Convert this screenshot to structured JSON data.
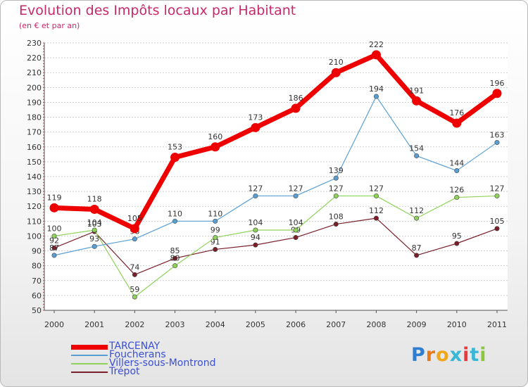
{
  "title": "Evolution des Impôts locaux par Habitant",
  "subtitle": "(en € et par an)",
  "logo": {
    "text": "Proxiti",
    "letter_colors": [
      "#2f7fd0",
      "#e87a1a",
      "#f0a81a",
      "#3bb6d6",
      "#e83a3a",
      "#3bb6d6",
      "#8cc63f"
    ]
  },
  "chart_data": {
    "type": "line",
    "title": "Evolution des Impôts locaux par Habitant",
    "subtitle": "(en € et par an)",
    "xlabel": "",
    "ylabel": "",
    "x": [
      "2000",
      "2001",
      "2002",
      "2003",
      "2004",
      "2005",
      "2006",
      "2007",
      "2008",
      "2009",
      "2010",
      "2011"
    ],
    "ylim": [
      50,
      230
    ],
    "yticks": [
      50,
      60,
      70,
      80,
      90,
      100,
      110,
      120,
      130,
      140,
      150,
      160,
      170,
      180,
      190,
      200,
      210,
      220,
      230
    ],
    "grid": "horizontal",
    "legend_position": "bottom-left",
    "series": [
      {
        "name": "Trépot",
        "color": "#7a1f2a",
        "values": [
          92,
          103,
          74,
          85,
          91,
          94,
          99,
          108,
          112,
          87,
          95,
          105
        ],
        "labels": [
          "92",
          "103",
          "74",
          "85",
          "91",
          "94",
          "99",
          "108",
          "112",
          "87",
          "95",
          "105"
        ]
      },
      {
        "name": "Villers-sous-Montrond",
        "color": "#8ed25a",
        "values": [
          100,
          104,
          59,
          80,
          99,
          104,
          104,
          127,
          127,
          112,
          126,
          127
        ],
        "labels": [
          "100",
          "104",
          "59",
          "80",
          "99",
          "104",
          "104",
          "127",
          "127",
          "112",
          "126",
          "127"
        ]
      },
      {
        "name": "Foucherans",
        "color": "#5a9fd4",
        "values": [
          87,
          93,
          98,
          110,
          110,
          127,
          127,
          139,
          194,
          154,
          144,
          163
        ],
        "labels": [
          "87",
          "93",
          "98",
          "110",
          "110",
          "127",
          "127",
          "139",
          "194",
          "154",
          "144",
          "163"
        ]
      },
      {
        "name": "TARCENAY",
        "color": "#ee0000",
        "values": [
          119,
          118,
          105,
          153,
          160,
          173,
          186,
          210,
          222,
          191,
          176,
          196
        ],
        "labels": [
          "119",
          "118",
          "105",
          "153",
          "160",
          "173",
          "186",
          "210",
          "222",
          "191",
          "176",
          "196"
        ]
      }
    ],
    "legend": [
      {
        "name": "TARCENAY",
        "color": "#ee0000"
      },
      {
        "name": "Foucherans",
        "color": "#5a9fd4"
      },
      {
        "name": "Villers-sous-Montrond",
        "color": "#8ed25a"
      },
      {
        "name": "Trépot",
        "color": "#7a1f2a"
      }
    ]
  }
}
